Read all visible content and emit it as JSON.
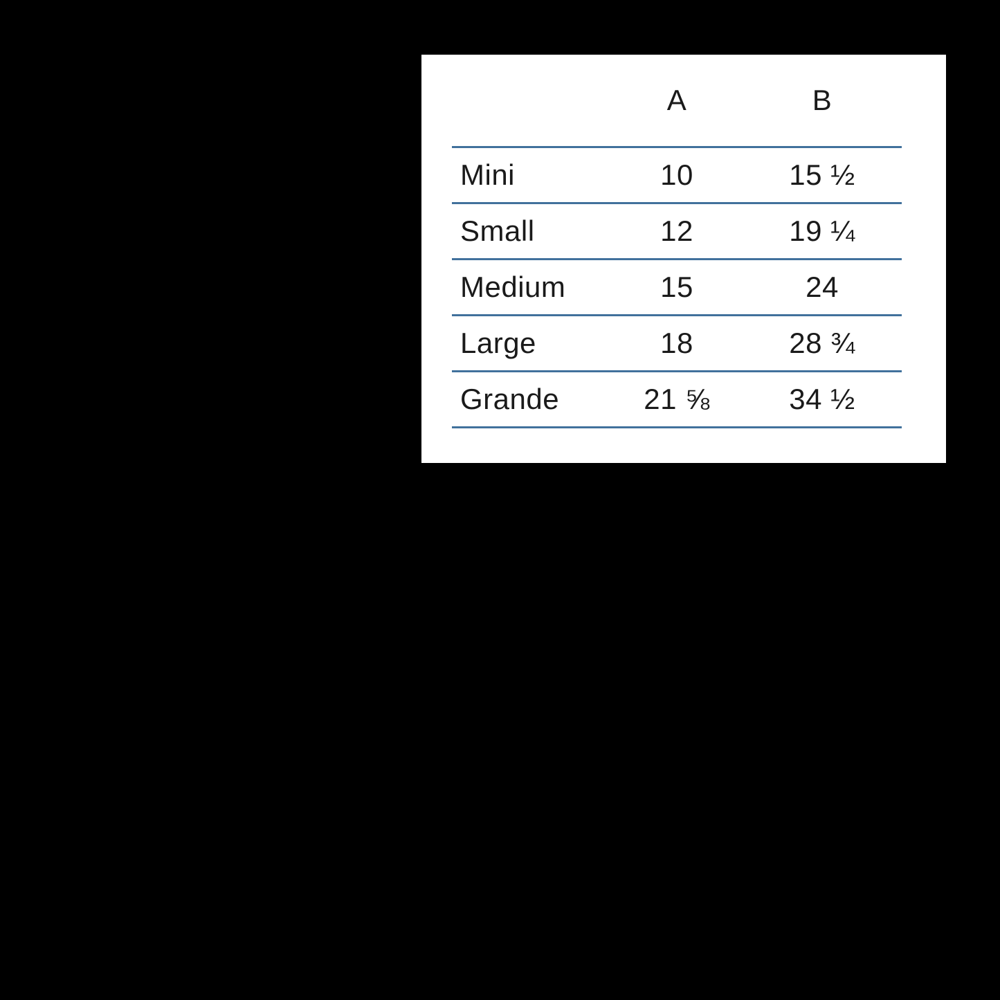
{
  "page": {
    "background_color": "#000000"
  },
  "panel": {
    "background_color": "#ffffff"
  },
  "table": {
    "line_color": "#41719C",
    "text_color": "#1a1a1a",
    "column_headers": [
      "A",
      "B"
    ],
    "rows": [
      {
        "label": "Mini",
        "a": "10",
        "b": "15 ½"
      },
      {
        "label": "Small",
        "a": "12",
        "b": "19 ¼"
      },
      {
        "label": "Medium",
        "a": "15",
        "b": "24"
      },
      {
        "label": "Large",
        "a": "18",
        "b": "28 ¾"
      },
      {
        "label": "Grande",
        "a": "21 ⅝",
        "b": "34 ½"
      }
    ]
  }
}
